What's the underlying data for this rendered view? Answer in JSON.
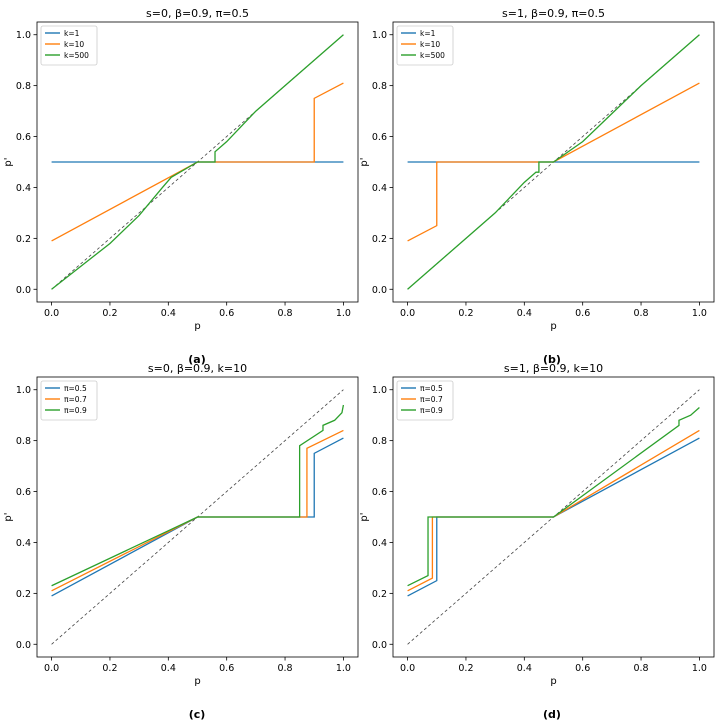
{
  "chart_data": [
    {
      "type": "line",
      "title": "s=0, β=0.9, π=0.5",
      "caption": "(a)",
      "xlabel": "p",
      "ylabel": "p'",
      "xlim": [
        -0.05,
        1.05
      ],
      "ylim": [
        -0.05,
        1.05
      ],
      "xticks": [
        "0.0",
        "0.2",
        "0.4",
        "0.6",
        "0.8",
        "1.0"
      ],
      "yticks": [
        "0.0",
        "0.2",
        "0.4",
        "0.6",
        "0.8",
        "1.0"
      ],
      "legend_position": "top-left",
      "diagonal": true,
      "series": [
        {
          "name": "k=1",
          "color": "#1f77b4",
          "points": [
            [
              0.0,
              0.5
            ],
            [
              1.0,
              0.5
            ]
          ]
        },
        {
          "name": "k=10",
          "color": "#ff7f0e",
          "points": [
            [
              0.0,
              0.19
            ],
            [
              0.5,
              0.5
            ],
            [
              0.9,
              0.5
            ],
            [
              0.9,
              0.75
            ],
            [
              1.0,
              0.81
            ]
          ]
        },
        {
          "name": "k=500",
          "color": "#2ca02c",
          "points": [
            [
              0.0,
              0.0
            ],
            [
              0.2,
              0.18
            ],
            [
              0.3,
              0.29
            ],
            [
              0.38,
              0.4
            ],
            [
              0.41,
              0.44
            ],
            [
              0.5,
              0.5
            ],
            [
              0.56,
              0.5
            ],
            [
              0.56,
              0.54
            ],
            [
              0.6,
              0.58
            ],
            [
              0.7,
              0.7
            ],
            [
              0.8,
              0.8
            ],
            [
              1.0,
              1.0
            ]
          ]
        }
      ]
    },
    {
      "type": "line",
      "title": "s=1, β=0.9, π=0.5",
      "caption": "(b)",
      "xlabel": "p",
      "ylabel": "p'",
      "xlim": [
        -0.05,
        1.05
      ],
      "ylim": [
        -0.05,
        1.05
      ],
      "xticks": [
        "0.0",
        "0.2",
        "0.4",
        "0.6",
        "0.8",
        "1.0"
      ],
      "yticks": [
        "0.0",
        "0.2",
        "0.4",
        "0.6",
        "0.8",
        "1.0"
      ],
      "legend_position": "top-left",
      "diagonal": true,
      "series": [
        {
          "name": "k=1",
          "color": "#1f77b4",
          "points": [
            [
              0.0,
              0.5
            ],
            [
              1.0,
              0.5
            ]
          ]
        },
        {
          "name": "k=10",
          "color": "#ff7f0e",
          "points": [
            [
              0.0,
              0.19
            ],
            [
              0.1,
              0.25
            ],
            [
              0.1,
              0.5
            ],
            [
              0.5,
              0.5
            ],
            [
              1.0,
              0.81
            ]
          ]
        },
        {
          "name": "k=500",
          "color": "#2ca02c",
          "points": [
            [
              0.0,
              0.0
            ],
            [
              0.2,
              0.2
            ],
            [
              0.3,
              0.3
            ],
            [
              0.4,
              0.42
            ],
            [
              0.44,
              0.46
            ],
            [
              0.45,
              0.46
            ],
            [
              0.45,
              0.5
            ],
            [
              0.5,
              0.5
            ],
            [
              0.6,
              0.58
            ],
            [
              0.7,
              0.69
            ],
            [
              0.8,
              0.8
            ],
            [
              1.0,
              1.0
            ]
          ]
        }
      ]
    },
    {
      "type": "line",
      "title": "s=0, β=0.9, k=10",
      "caption": "(c)",
      "xlabel": "p",
      "ylabel": "p'",
      "xlim": [
        -0.05,
        1.05
      ],
      "ylim": [
        -0.05,
        1.05
      ],
      "xticks": [
        "0.0",
        "0.2",
        "0.4",
        "0.6",
        "0.8",
        "1.0"
      ],
      "yticks": [
        "0.0",
        "0.2",
        "0.4",
        "0.6",
        "0.8",
        "1.0"
      ],
      "legend_position": "top-left",
      "diagonal": true,
      "series": [
        {
          "name": "π=0.5",
          "color": "#1f77b4",
          "points": [
            [
              0.0,
              0.19
            ],
            [
              0.5,
              0.5
            ],
            [
              0.9,
              0.5
            ],
            [
              0.9,
              0.75
            ],
            [
              1.0,
              0.81
            ]
          ]
        },
        {
          "name": "π=0.7",
          "color": "#ff7f0e",
          "points": [
            [
              0.0,
              0.21
            ],
            [
              0.5,
              0.5
            ],
            [
              0.875,
              0.5
            ],
            [
              0.875,
              0.77
            ],
            [
              1.0,
              0.84
            ]
          ]
        },
        {
          "name": "π=0.9",
          "color": "#2ca02c",
          "points": [
            [
              0.0,
              0.23
            ],
            [
              0.5,
              0.5
            ],
            [
              0.85,
              0.5
            ],
            [
              0.85,
              0.78
            ],
            [
              0.93,
              0.84
            ],
            [
              0.93,
              0.86
            ],
            [
              0.97,
              0.88
            ],
            [
              0.995,
              0.91
            ],
            [
              1.0,
              0.94
            ]
          ]
        }
      ]
    },
    {
      "type": "line",
      "title": "s=1, β=0.9, k=10",
      "caption": "(d)",
      "xlabel": "p",
      "ylabel": "p'",
      "xlim": [
        -0.05,
        1.05
      ],
      "ylim": [
        -0.05,
        1.05
      ],
      "xticks": [
        "0.0",
        "0.2",
        "0.4",
        "0.6",
        "0.8",
        "1.0"
      ],
      "yticks": [
        "0.0",
        "0.2",
        "0.4",
        "0.6",
        "0.8",
        "1.0"
      ],
      "legend_position": "top-left",
      "diagonal": true,
      "series": [
        {
          "name": "π=0.5",
          "color": "#1f77b4",
          "points": [
            [
              0.0,
              0.19
            ],
            [
              0.1,
              0.25
            ],
            [
              0.1,
              0.5
            ],
            [
              0.5,
              0.5
            ],
            [
              1.0,
              0.81
            ]
          ]
        },
        {
          "name": "π=0.7",
          "color": "#ff7f0e",
          "points": [
            [
              0.0,
              0.21
            ],
            [
              0.085,
              0.26
            ],
            [
              0.085,
              0.5
            ],
            [
              0.5,
              0.5
            ],
            [
              1.0,
              0.84
            ]
          ]
        },
        {
          "name": "π=0.9",
          "color": "#2ca02c",
          "points": [
            [
              0.0,
              0.23
            ],
            [
              0.07,
              0.27
            ],
            [
              0.07,
              0.5
            ],
            [
              0.5,
              0.5
            ],
            [
              0.93,
              0.86
            ],
            [
              0.93,
              0.88
            ],
            [
              0.97,
              0.9
            ],
            [
              1.0,
              0.93
            ]
          ]
        }
      ]
    }
  ]
}
